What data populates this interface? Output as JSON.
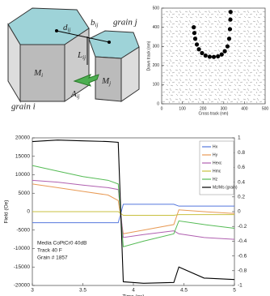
{
  "diagram": {
    "labels": [
      {
        "text": "d",
        "sub": "ij"
      },
      {
        "text": "b",
        "sub": "ij"
      },
      {
        "text": "grain j"
      },
      {
        "text": "L",
        "sub": "ij"
      },
      {
        "text": "M",
        "sub": "i"
      },
      {
        "text": "M",
        "sub": "j"
      },
      {
        "text": "A",
        "sub": "ij"
      },
      {
        "text": "grain i"
      }
    ]
  },
  "chart_data": [
    {
      "type": "scatter",
      "xlabel": "Cross track (nm)",
      "ylabel": "Down track (nm)",
      "xlim": [
        0,
        500
      ],
      "ylim": [
        0,
        500
      ],
      "xticks": [
        0,
        100,
        200,
        300,
        400,
        500
      ],
      "yticks": [
        0,
        100,
        200,
        300,
        400,
        500
      ],
      "color": "#000000",
      "x": [
        155,
        158,
        162,
        170,
        180,
        195,
        212,
        232,
        252,
        272,
        290,
        305,
        318,
        326,
        330,
        332,
        333
      ],
      "y": [
        400,
        370,
        340,
        310,
        285,
        265,
        252,
        246,
        245,
        248,
        258,
        275,
        300,
        340,
        390,
        440,
        480
      ]
    },
    {
      "type": "line",
      "xlabel": "Time (ns)",
      "ylabel": "Field (Oe)",
      "xlim": [
        3,
        5
      ],
      "xticks": [
        3,
        3.5,
        4,
        4.5,
        5
      ],
      "ylim": [
        -20000,
        20000
      ],
      "yticks": [
        -20000,
        -15000,
        -10000,
        -5000,
        0,
        5000,
        10000,
        15000,
        20000
      ],
      "y2lim": [
        -1,
        1
      ],
      "y2ticks": [
        -1,
        -0.8,
        -0.6,
        -0.4,
        -0.2,
        0,
        0.2,
        0.4,
        0.6,
        0.8,
        1
      ],
      "annotations": [
        "Media CoPtCr0 40dB",
        "Track 40 F",
        "Grain # 1857"
      ],
      "x": [
        3,
        3.25,
        3.5,
        3.75,
        3.85,
        3.9,
        4.1,
        4.4,
        4.45,
        4.7,
        5
      ],
      "series": [
        {
          "name": "Hx",
          "color": "#5577dd",
          "values": [
            -3000,
            -3000,
            -3000,
            -3000,
            -3000,
            2000,
            2000,
            2000,
            1500,
            1500,
            1500
          ]
        },
        {
          "name": "Hy",
          "color": "#e89a55",
          "values": [
            7500,
            6500,
            5500,
            4500,
            3000,
            -6000,
            -5000,
            -3500,
            500,
            0,
            -500
          ]
        },
        {
          "name": "Hexc",
          "color": "#b060b0",
          "values": [
            8500,
            8000,
            7200,
            6500,
            6000,
            -7000,
            -6200,
            -5200,
            -6000,
            -7000,
            -7500
          ]
        },
        {
          "name": "Hmc",
          "color": "#c8c040",
          "values": [
            0,
            0,
            0,
            0,
            0,
            -1000,
            -1000,
            -1000,
            -800,
            -800,
            -800
          ]
        },
        {
          "name": "Hz",
          "color": "#55bb55",
          "values": [
            12500,
            11000,
            9500,
            8500,
            7500,
            -9500,
            -8000,
            -6000,
            -2500,
            -3500,
            -4500
          ]
        },
        {
          "name": "Mz/Ms (grain)",
          "color": "#000000",
          "axis": "y2",
          "values": [
            0.95,
            0.97,
            0.96,
            0.95,
            0.94,
            -0.95,
            -0.97,
            -0.96,
            -0.75,
            -0.9,
            -0.92
          ]
        }
      ]
    }
  ]
}
